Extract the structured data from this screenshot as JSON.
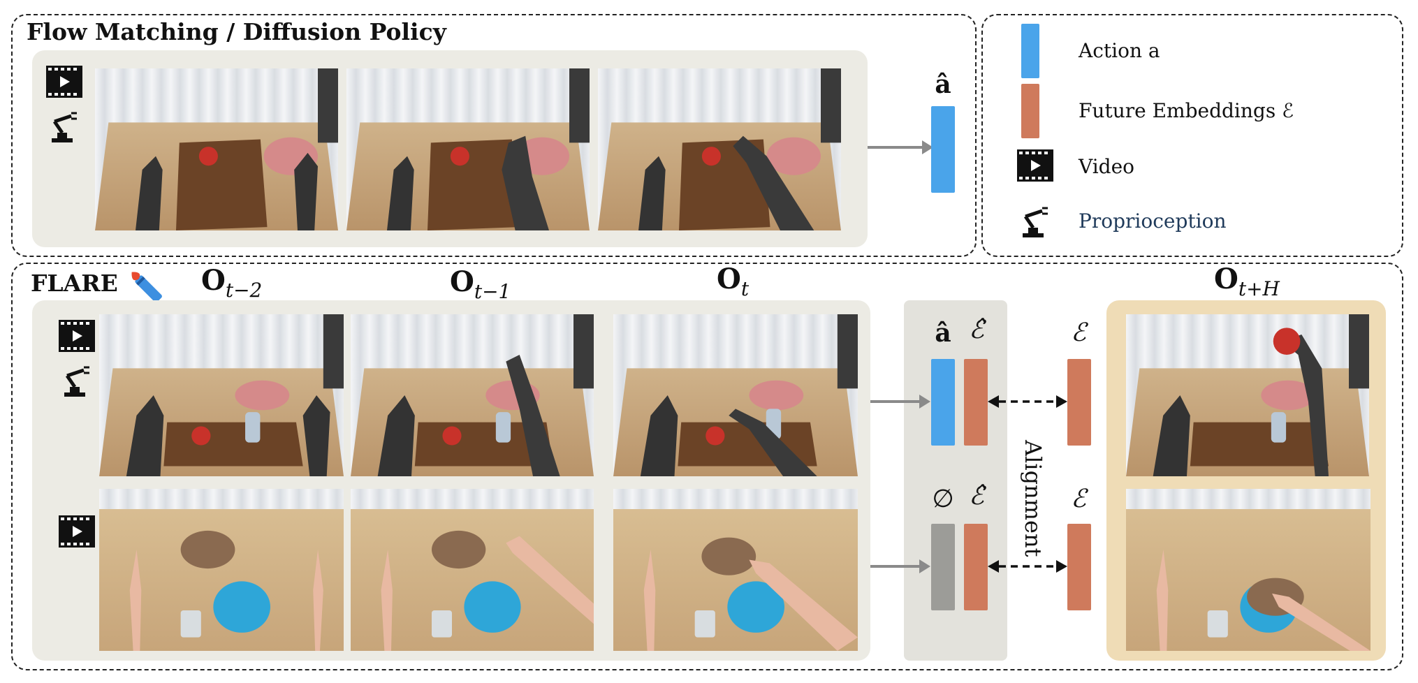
{
  "top_panel": {
    "title": "Flow Matching / Diffusion Policy",
    "output_symbol": "â",
    "video_icon": "video-icon",
    "proprio_icon": "robot-arm-icon"
  },
  "legend": {
    "items": [
      {
        "label": "Action a",
        "swatch": "#4aa4ea"
      },
      {
        "label": "Future Embeddings ℰ",
        "swatch": "#cf7a5c"
      },
      {
        "label": "Video",
        "icon": "video-icon"
      },
      {
        "label": "Proprioception",
        "icon": "robot-arm-icon",
        "color": "#1f3a5a"
      }
    ]
  },
  "bottom_panel": {
    "title": "FLARE",
    "torch_icon": "torch-icon",
    "obs_labels": {
      "t_minus_2": {
        "base": "O",
        "sub": "t−2"
      },
      "t_minus_1": {
        "base": "O",
        "sub": "t−1"
      },
      "t": {
        "base": "O",
        "sub": "t"
      },
      "t_plus_h": {
        "base": "O",
        "sub": "t+H"
      }
    },
    "row1_symbols": {
      "action": "â",
      "pred_embed": "ℰ̂",
      "target_embed": "ℰ"
    },
    "row2_symbols": {
      "null": "∅",
      "pred_embed": "ℰ̂",
      "target_embed": "ℰ"
    },
    "alignment_label": "Alignment"
  },
  "colors": {
    "action": "#4aa4ea",
    "embedding": "#cf7a5c",
    "null": "#9c9c98",
    "panel": "#ecebe4",
    "future_panel": "#efdcb6"
  }
}
